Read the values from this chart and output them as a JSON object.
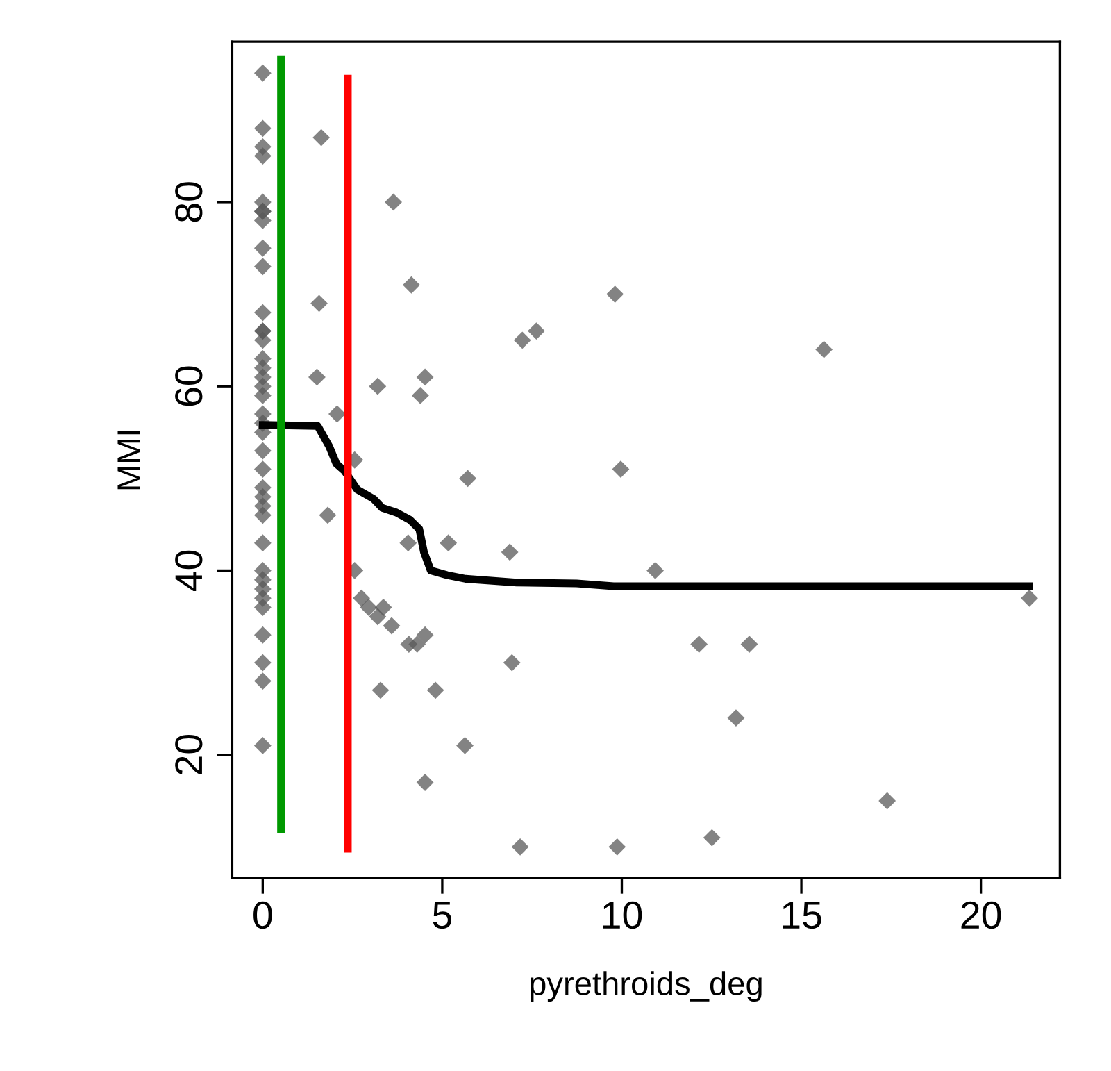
{
  "chart_data": {
    "type": "scatter",
    "xlabel": "pyrethroids_deg",
    "ylabel": "MMI",
    "xlim": [
      -0.85,
      22.2
    ],
    "ylim": [
      6.6,
      97.4
    ],
    "xticks": [
      0,
      5,
      10,
      15,
      20
    ],
    "yticks": [
      20,
      40,
      60,
      80
    ],
    "grid": false,
    "legend": false,
    "marker": "diamond",
    "series": [
      {
        "color": "#595959",
        "x": [
          0,
          0,
          0,
          0,
          0,
          0,
          0,
          0,
          0,
          0,
          0,
          0,
          0,
          0,
          0,
          0,
          0,
          0,
          0,
          0,
          0,
          0,
          0,
          0,
          0,
          0,
          0,
          0,
          0,
          0,
          0,
          0,
          0,
          0,
          0,
          0,
          0,
          0,
          1.63,
          3.64,
          4.14,
          9.81,
          1.57,
          7.23,
          7.62,
          1.51,
          3.2,
          4.52,
          4.39,
          2.07,
          2.56,
          9.97,
          5.71,
          1.81,
          4.05,
          5.17,
          6.88,
          2.56,
          2.75,
          2.95,
          3.2,
          3.36,
          3.59,
          4.07,
          4.3,
          4.52,
          6.94,
          3.28,
          4.81,
          5.63,
          4.52,
          7.17,
          9.87,
          10.93,
          12.15,
          13.55,
          13.18,
          17.39,
          12.51,
          21.35,
          15.63
        ],
        "values": [
          94,
          88,
          86,
          85,
          80,
          79,
          79,
          78,
          75,
          73,
          68,
          66,
          66,
          65,
          63,
          62,
          61,
          60,
          59,
          57,
          56,
          55,
          53,
          51,
          49,
          48,
          47,
          46,
          43,
          40,
          39,
          38,
          37,
          36,
          33,
          30,
          28,
          21,
          87,
          80,
          71,
          70,
          69,
          65,
          66,
          61,
          60,
          61,
          59,
          57,
          52,
          51,
          50,
          46,
          43,
          43,
          42,
          40,
          37,
          36,
          35,
          36,
          34,
          32,
          32,
          33,
          30,
          27,
          27,
          21,
          17,
          10,
          10,
          40,
          32,
          32,
          24,
          15,
          11,
          37,
          64
        ]
      },
      {
        "type": "line",
        "color": "#000000",
        "marker": "none",
        "line_style": "solid",
        "x": [
          0,
          1.53,
          1.85,
          2.05,
          2.28,
          2.63,
          3.08,
          3.33,
          3.72,
          4.1,
          4.36,
          4.49,
          4.68,
          5.14,
          5.65,
          7.07,
          8.74,
          9.77,
          21.35
        ],
        "values": [
          55.8,
          55.7,
          53.5,
          51.6,
          50.8,
          48.8,
          47.8,
          46.8,
          46.3,
          45.5,
          44.5,
          42.0,
          40.0,
          39.5,
          39.1,
          38.7,
          38.6,
          38.3,
          38.3
        ]
      },
      {
        "type": "line",
        "color": "#009900",
        "marker": "none",
        "line_style": "solid",
        "x": [
          0.51,
          0.51
        ],
        "values": [
          11.9,
          95.5
        ]
      },
      {
        "type": "line",
        "color": "#ff0000",
        "marker": "none",
        "line_style": "solid",
        "x": [
          2.37,
          2.37
        ],
        "values": [
          9.8,
          93.4
        ]
      }
    ]
  }
}
